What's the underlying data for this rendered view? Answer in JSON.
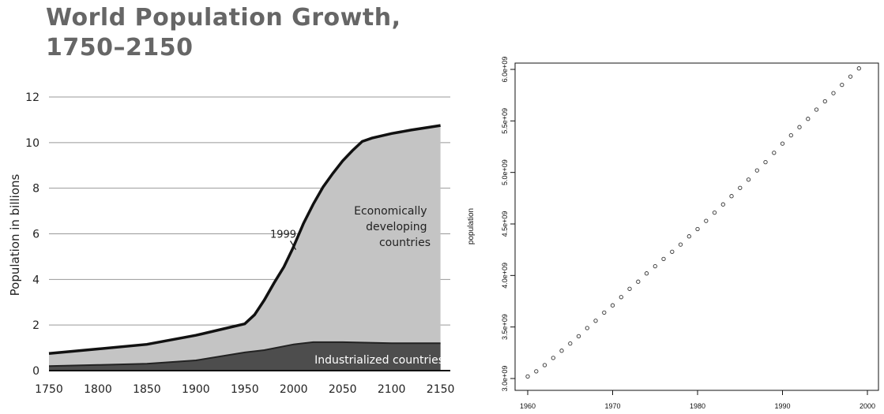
{
  "chart_data": [
    {
      "type": "area",
      "title": "World Population Growth, 1750–2150",
      "title_lines": [
        "World Population Growth,",
        "1750–2150"
      ],
      "xlabel": "",
      "ylabel": "Population in billions",
      "xlim": [
        1750,
        2160
      ],
      "ylim": [
        0,
        12
      ],
      "x_ticks": [
        "1750",
        "1800",
        "1850",
        "1900",
        "1950",
        "2000",
        "2050",
        "2100",
        "2150"
      ],
      "y_ticks": [
        "0",
        "2",
        "4",
        "6",
        "8",
        "10",
        "12"
      ],
      "grid": true,
      "series": [
        {
          "name": "Industrialized countries",
          "x": [
            1750,
            1800,
            1850,
            1900,
            1950,
            1970,
            2000,
            2020,
            2050,
            2100,
            2150
          ],
          "values": [
            0.2,
            0.25,
            0.3,
            0.45,
            0.8,
            0.9,
            1.15,
            1.25,
            1.25,
            1.2,
            1.2
          ]
        },
        {
          "name": "Economically developing countries",
          "x": [
            1750,
            1800,
            1850,
            1900,
            1930,
            1950,
            1960,
            1970,
            1980,
            1990,
            1999,
            2010,
            2020,
            2030,
            2040,
            2050,
            2060,
            2070,
            2080,
            2100,
            2120,
            2150
          ],
          "values": [
            0.75,
            0.95,
            1.15,
            1.55,
            1.85,
            2.05,
            2.45,
            3.1,
            3.85,
            4.55,
            5.35,
            6.45,
            7.3,
            8.05,
            8.65,
            9.2,
            9.65,
            10.05,
            10.2,
            10.4,
            10.55,
            10.75
          ]
        }
      ],
      "annotations": [
        {
          "text": "1999",
          "x": 1999,
          "y": 5.9
        },
        {
          "lines": [
            "Economically",
            "developing",
            "countries"
          ]
        },
        {
          "text": "Industrialized countries"
        }
      ],
      "colors": {
        "developing": "#c4c4c4",
        "industrialized": "#4d4d4d",
        "grid": "#999999"
      }
    },
    {
      "type": "scatter",
      "title": "",
      "xlabel": "",
      "ylabel": "population",
      "xlim": [
        1960,
        2000
      ],
      "ylim": [
        3000000000,
        6000000000
      ],
      "x_ticks": [
        "1960",
        "1970",
        "1980",
        "1990",
        "2000"
      ],
      "y_ticks": [
        "3.0e+09",
        "3.5e+09",
        "4.0e+09",
        "4.5e+09",
        "5.0e+09",
        "5.5e+09",
        "6.0e+09"
      ],
      "grid": false,
      "x": [
        1960,
        1961,
        1962,
        1963,
        1964,
        1965,
        1966,
        1967,
        1968,
        1969,
        1970,
        1971,
        1972,
        1973,
        1974,
        1975,
        1976,
        1977,
        1978,
        1979,
        1980,
        1981,
        1982,
        1983,
        1984,
        1985,
        1986,
        1987,
        1988,
        1989,
        1990,
        1991,
        1992,
        1993,
        1994,
        1995,
        1996,
        1997,
        1998,
        1999
      ],
      "values": [
        3020000000,
        3070000000,
        3130000000,
        3200000000,
        3270000000,
        3340000000,
        3410000000,
        3490000000,
        3560000000,
        3640000000,
        3710000000,
        3790000000,
        3870000000,
        3940000000,
        4020000000,
        4090000000,
        4160000000,
        4230000000,
        4300000000,
        4380000000,
        4450000000,
        4530000000,
        4610000000,
        4690000000,
        4770000000,
        4850000000,
        4930000000,
        5020000000,
        5100000000,
        5190000000,
        5280000000,
        5360000000,
        5440000000,
        5520000000,
        5610000000,
        5690000000,
        5770000000,
        5850000000,
        5930000000,
        6010000000
      ]
    }
  ]
}
